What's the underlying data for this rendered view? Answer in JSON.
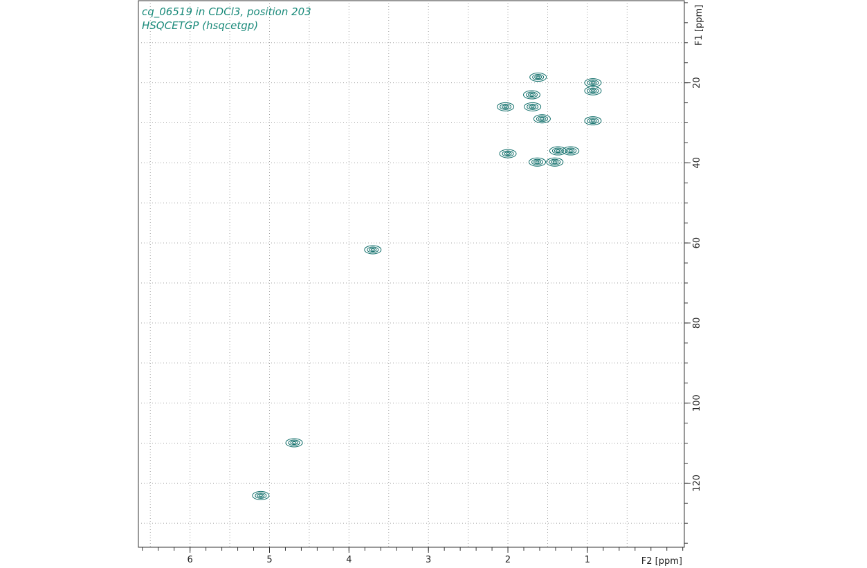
{
  "chart_data": {
    "type": "scatter",
    "title_lines": [
      "cq_06519 in CDCl3, position 203",
      "HSQCETGP (hsqcetgp)"
    ],
    "xlabel": "F2 [ppm]",
    "ylabel": "F1 [ppm]",
    "x_reversed": true,
    "xlim": [
      6.65,
      -0.22
    ],
    "ylim": [
      -0.5,
      136
    ],
    "x_ticks": [
      "6",
      "5",
      "4",
      "3",
      "2",
      "1"
    ],
    "y_ticks": [
      "20",
      "40",
      "60",
      "80",
      "100",
      "120"
    ],
    "grid": true,
    "contour_color": "#0f6e6a",
    "peaks": [
      {
        "x": 0.93,
        "y": 20.0
      },
      {
        "x": 0.93,
        "y": 22.0
      },
      {
        "x": 0.93,
        "y": 29.5
      },
      {
        "x": 1.62,
        "y": 18.6
      },
      {
        "x": 1.7,
        "y": 23.0
      },
      {
        "x": 1.69,
        "y": 26.0
      },
      {
        "x": 2.03,
        "y": 26.0
      },
      {
        "x": 1.57,
        "y": 29.0
      },
      {
        "x": 1.37,
        "y": 37.0
      },
      {
        "x": 1.21,
        "y": 37.0
      },
      {
        "x": 2.0,
        "y": 37.7
      },
      {
        "x": 1.63,
        "y": 39.8
      },
      {
        "x": 1.41,
        "y": 39.8
      },
      {
        "x": 3.7,
        "y": 61.7
      },
      {
        "x": 4.69,
        "y": 109.9
      },
      {
        "x": 5.11,
        "y": 123.1
      }
    ]
  }
}
